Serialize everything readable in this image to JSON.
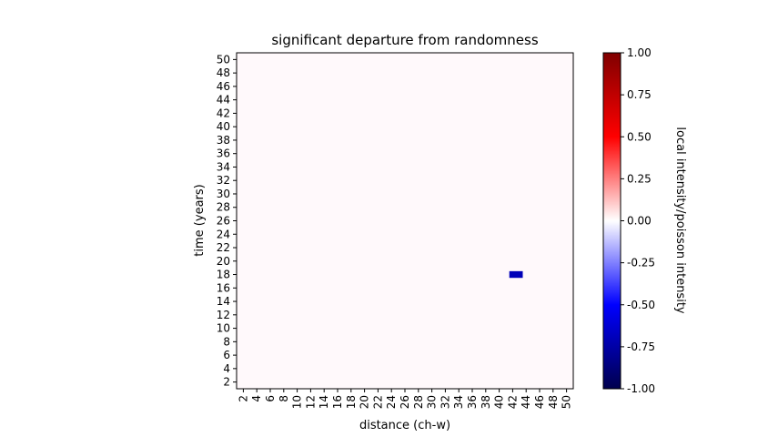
{
  "chart_data": {
    "type": "heatmap",
    "title": "significant departure from randomness",
    "xlabel": "distance (ch-w)",
    "ylabel": "time (years)",
    "x_ticks": [
      2,
      4,
      6,
      8,
      10,
      12,
      14,
      16,
      18,
      20,
      22,
      24,
      26,
      28,
      30,
      32,
      34,
      36,
      38,
      40,
      42,
      44,
      46,
      48,
      50
    ],
    "y_ticks": [
      2,
      4,
      6,
      8,
      10,
      12,
      14,
      16,
      18,
      20,
      22,
      24,
      26,
      28,
      30,
      32,
      34,
      36,
      38,
      40,
      42,
      44,
      46,
      48,
      50
    ],
    "x_range": [
      1,
      51
    ],
    "y_range": [
      1,
      51
    ],
    "background_value": 0.0,
    "cells": [
      {
        "x_from": 41.5,
        "x_to": 43.5,
        "y": 18,
        "value": -0.7
      }
    ],
    "colormap": "seismic",
    "colorbar": {
      "label": "local intensity/poisson intensity",
      "min": -1.0,
      "max": 1.0,
      "ticks": [
        "-1.00",
        "-0.75",
        "-0.50",
        "-0.25",
        "0.00",
        "0.25",
        "0.50",
        "0.75",
        "1.00"
      ]
    }
  }
}
